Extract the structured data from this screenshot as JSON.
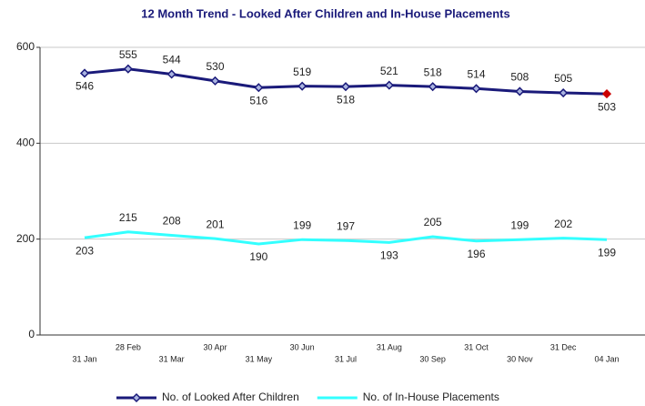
{
  "chart_data": {
    "type": "line",
    "title": "12 Month Trend - Looked After Children and In-House Placements",
    "categories": [
      "31 Jan",
      "28 Feb",
      "31 Mar",
      "30 Apr",
      "31 May",
      "30 Jun",
      "31 Jul",
      "31 Aug",
      "30 Sep",
      "31 Oct",
      "30 Nov",
      "31 Dec",
      "04 Jan"
    ],
    "series": [
      {
        "name": "No. of Looked After Children",
        "color": "#1a1a7a",
        "markers": true,
        "last_marker_color": "#cc0000",
        "values": [
          546,
          555,
          544,
          530,
          516,
          519,
          518,
          521,
          518,
          514,
          508,
          505,
          503
        ]
      },
      {
        "name": "No. of In-House Placements",
        "color": "#33ffff",
        "markers": false,
        "values": [
          203,
          215,
          208,
          201,
          190,
          199,
          197,
          193,
          205,
          196,
          199,
          202,
          199
        ]
      }
    ],
    "ylim": [
      0,
      600
    ],
    "yticks": [
      0,
      200,
      400,
      600
    ],
    "grid": true,
    "legend": "bottom"
  }
}
